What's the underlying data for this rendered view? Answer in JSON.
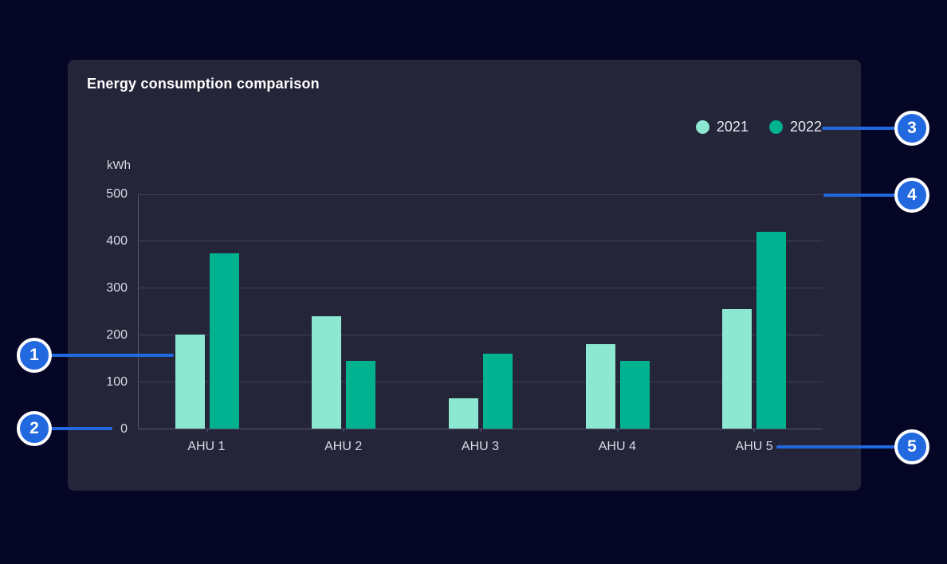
{
  "chart_data": {
    "type": "bar",
    "title": "Energy consumption comparison",
    "unit_label": "kWh",
    "categories": [
      "AHU 1",
      "AHU 2",
      "AHU 3",
      "AHU 4",
      "AHU 5"
    ],
    "series": [
      {
        "name": "2021",
        "color": "#8CE8D1",
        "values": [
          200,
          240,
          65,
          180,
          255
        ]
      },
      {
        "name": "2022",
        "color": "#00B28F",
        "values": [
          375,
          145,
          160,
          145,
          420
        ]
      }
    ],
    "xlabel": "",
    "ylabel": "kWh",
    "ylim": [
      0,
      500
    ],
    "yticks": [
      0,
      100,
      200,
      300,
      400,
      500
    ],
    "grid": true,
    "legend_position": "top-right"
  },
  "callouts": {
    "badges": [
      "1",
      "2",
      "3",
      "4",
      "5"
    ]
  },
  "colors": {
    "accent_blue": "#2269E0",
    "page_background": "#050526",
    "card_background": "#252539",
    "gridline": "#414259",
    "axis_line": "#555672",
    "series_2021": "#8CE8D1",
    "series_2022": "#00B28F"
  }
}
